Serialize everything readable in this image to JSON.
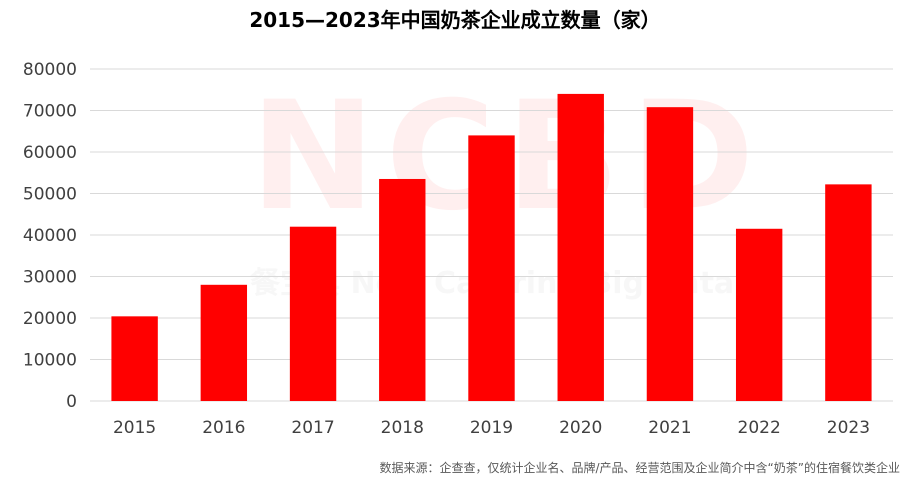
{
  "title": "2015—2023年中国奶茶企业成立数量（家）",
  "source_note": "数据来源：企查查，仅统计企业名、品牌/产品、经营范围及企业简介中含“奶茶”的住宿餐饮类企业",
  "watermark": {
    "logo": "NCBD",
    "tagline": "餐宝典 New Catering Big Data"
  },
  "colors": {
    "bar": "#ff0000",
    "grid": "#d9d9d9",
    "axis_text": "#404040"
  },
  "chart_data": {
    "type": "bar",
    "categories": [
      "2015",
      "2016",
      "2017",
      "2018",
      "2019",
      "2020",
      "2021",
      "2022",
      "2023"
    ],
    "values": [
      20400,
      28000,
      42000,
      53500,
      64000,
      74000,
      70800,
      41500,
      52200
    ],
    "ylim": [
      0,
      80000
    ],
    "yticks": [
      0,
      10000,
      20000,
      30000,
      40000,
      50000,
      60000,
      70000,
      80000
    ],
    "grid": true,
    "legend": "none"
  }
}
